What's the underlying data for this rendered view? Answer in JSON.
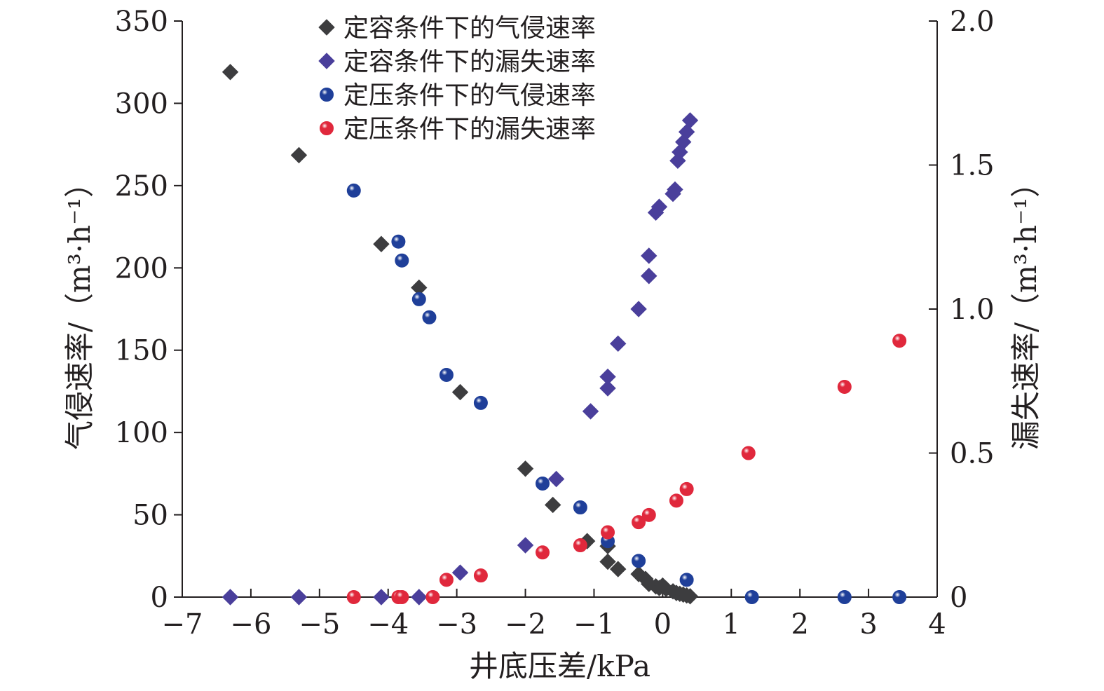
{
  "chart_data": {
    "type": "scatter",
    "xlabel": "井底压差/kPa",
    "ylabel_left": "气侵速率/（m³·h⁻¹）",
    "ylabel_right": "漏失速率/（m³·h⁻¹）",
    "xlim": [
      -7,
      4
    ],
    "ylim_left": [
      0,
      350
    ],
    "ylim_right": [
      0,
      2.0
    ],
    "xticks": [
      -7,
      -6,
      -5,
      -4,
      -3,
      -2,
      -1,
      0,
      1,
      2,
      3,
      4
    ],
    "xtick_labels": [
      "−7",
      "−6",
      "−5",
      "−4",
      "−3",
      "−2",
      "−1",
      "0",
      "1",
      "2",
      "3",
      "4"
    ],
    "yticks_left": [
      0,
      50,
      100,
      150,
      200,
      250,
      300,
      350
    ],
    "ytick_labels_left": [
      "0",
      "50",
      "100",
      "150",
      "200",
      "250",
      "300",
      "350"
    ],
    "yticks_right": [
      0,
      0.5,
      1.0,
      1.5,
      2.0
    ],
    "ytick_labels_right": [
      "0",
      "0.5",
      "1.0",
      "1.5",
      "2.0"
    ],
    "legend_position": "top-center",
    "grid": false,
    "series": [
      {
        "name": "定容条件下的气侵速率",
        "axis": "left",
        "marker": "diamond",
        "color": "#3d3d3f",
        "points": [
          [
            -6.3,
            319
          ],
          [
            -5.3,
            268.5
          ],
          [
            -4.1,
            214.5
          ],
          [
            -3.55,
            188
          ],
          [
            -2.95,
            124.5
          ],
          [
            -2.0,
            78
          ],
          [
            -1.6,
            56
          ],
          [
            -1.1,
            34
          ],
          [
            -0.8,
            31
          ],
          [
            -0.8,
            21.5
          ],
          [
            -0.65,
            17
          ],
          [
            -0.35,
            14
          ],
          [
            -0.25,
            11
          ],
          [
            -0.2,
            8
          ],
          [
            -0.1,
            6.5
          ],
          [
            -0.05,
            5.5
          ],
          [
            0.0,
            7
          ],
          [
            0.05,
            5
          ],
          [
            0.15,
            3.5
          ],
          [
            0.2,
            2.5
          ],
          [
            0.25,
            2
          ],
          [
            0.3,
            1.5
          ],
          [
            0.35,
            1
          ],
          [
            0.4,
            0.5
          ]
        ]
      },
      {
        "name": "定容条件下的漏失速率",
        "axis": "right",
        "marker": "diamond",
        "color": "#4a3f9b",
        "points": [
          [
            -6.3,
            0
          ],
          [
            -5.3,
            0
          ],
          [
            -4.1,
            0
          ],
          [
            -3.55,
            0
          ],
          [
            -2.95,
            0.085
          ],
          [
            -2.0,
            0.18
          ],
          [
            -1.55,
            0.41
          ],
          [
            -1.05,
            0.645
          ],
          [
            -0.8,
            0.725
          ],
          [
            -0.8,
            0.765
          ],
          [
            -0.65,
            0.88
          ],
          [
            -0.35,
            1.0
          ],
          [
            -0.2,
            1.115
          ],
          [
            -0.2,
            1.185
          ],
          [
            -0.1,
            1.335
          ],
          [
            -0.05,
            1.355
          ],
          [
            0.15,
            1.4
          ],
          [
            0.18,
            1.415
          ],
          [
            0.22,
            1.515
          ],
          [
            0.25,
            1.545
          ],
          [
            0.3,
            1.58
          ],
          [
            0.35,
            1.615
          ],
          [
            0.4,
            1.655
          ]
        ]
      },
      {
        "name": "定压条件下的气侵速率",
        "axis": "left",
        "marker": "sphere",
        "color": "#1f3f99",
        "points": [
          [
            -4.5,
            247
          ],
          [
            -3.85,
            216
          ],
          [
            -3.8,
            204.5
          ],
          [
            -3.55,
            181
          ],
          [
            -3.4,
            170
          ],
          [
            -3.15,
            135
          ],
          [
            -2.65,
            118
          ],
          [
            -1.75,
            69
          ],
          [
            -1.2,
            54.5
          ],
          [
            -0.8,
            34
          ],
          [
            -0.35,
            22
          ],
          [
            0.35,
            10.5
          ],
          [
            1.3,
            0
          ],
          [
            2.65,
            0
          ],
          [
            3.45,
            0
          ]
        ]
      },
      {
        "name": "定压条件下的漏失速率",
        "axis": "right",
        "marker": "sphere",
        "color": "#e0283c",
        "points": [
          [
            -4.5,
            0
          ],
          [
            -3.85,
            0
          ],
          [
            -3.8,
            0
          ],
          [
            -3.35,
            0
          ],
          [
            -3.15,
            0.06
          ],
          [
            -2.65,
            0.075
          ],
          [
            -1.75,
            0.155
          ],
          [
            -1.2,
            0.18
          ],
          [
            -0.8,
            0.225
          ],
          [
            -0.35,
            0.26
          ],
          [
            -0.2,
            0.285
          ],
          [
            0.2,
            0.335
          ],
          [
            0.35,
            0.375
          ],
          [
            1.25,
            0.5
          ],
          [
            2.65,
            0.73
          ],
          [
            3.45,
            0.89
          ]
        ]
      }
    ]
  }
}
